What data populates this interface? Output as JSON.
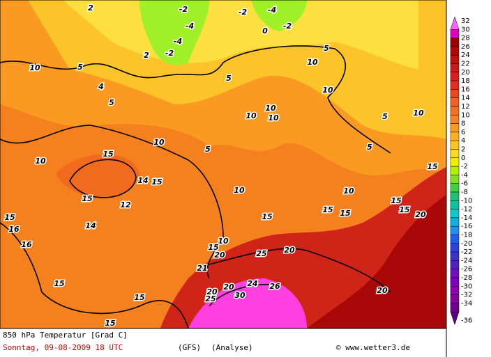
{
  "map": {
    "title": "850 hPa Temperatur [Grad C]",
    "date": "Sonntag, 09-08-2009  18 UTC",
    "model": "(GFS)",
    "run": "(Analyse)",
    "credit": "© www.wetter3.de",
    "contour_labels": [
      10,
      5,
      5,
      10,
      15,
      15,
      10,
      15,
      15,
      15,
      15,
      5,
      5,
      10,
      10,
      10,
      10,
      10,
      5,
      5,
      5,
      10,
      15,
      10,
      10,
      15,
      15,
      15,
      15,
      15,
      20,
      10,
      15,
      20,
      21,
      20,
      25,
      20,
      20,
      30,
      25,
      20,
      24,
      26,
      16,
      16,
      12,
      14,
      14,
      15,
      -2,
      -4,
      -4,
      -2,
      0,
      -4,
      -2,
      -2,
      2,
      2,
      4
    ],
    "scale": {
      "labels": [
        32,
        30,
        28,
        26,
        24,
        22,
        20,
        18,
        16,
        14,
        12,
        10,
        8,
        6,
        4,
        2,
        0,
        -2,
        -4,
        -6,
        -8,
        -10,
        -12,
        -14,
        -16,
        -18,
        -20,
        -22,
        -24,
        -26,
        -28,
        -30,
        -32,
        -34,
        -36
      ],
      "colors": [
        "#ff60ff",
        "#e000c0",
        "#a00000",
        "#b00808",
        "#c01010",
        "#cc1818",
        "#d82020",
        "#e03020",
        "#e84820",
        "#f06020",
        "#f47020",
        "#f88028",
        "#fa9a20",
        "#fcb020",
        "#fdc420",
        "#fed820",
        "#f0f000",
        "#b0f000",
        "#80e020",
        "#40d040",
        "#20c070",
        "#10c0a0",
        "#10c8c8",
        "#10b0e0",
        "#2090f0",
        "#2060f0",
        "#3040e0",
        "#4030c8",
        "#5020c0",
        "#7010c0",
        "#8000c0",
        "#9000b0",
        "#8800a0",
        "#700090",
        "#600080"
      ]
    }
  }
}
